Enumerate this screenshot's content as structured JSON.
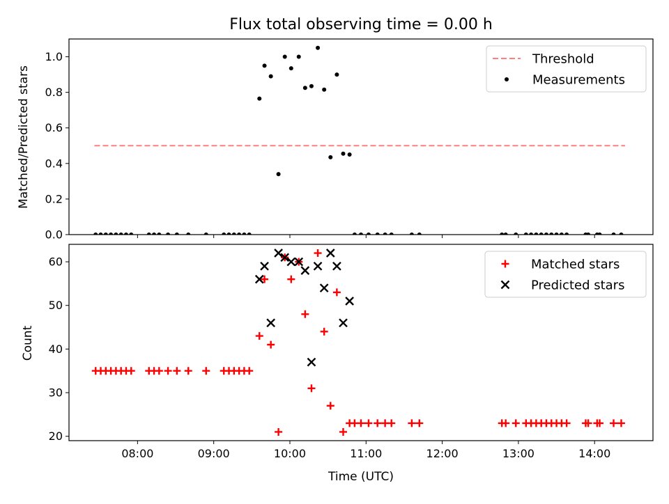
{
  "chart_data": [
    {
      "type": "scatter",
      "title": "Flux total observing time = 0.00 h",
      "xlabel": "",
      "ylabel": "Matched/Predicted stars",
      "xlim": [
        "07:06",
        "14:46"
      ],
      "ylim": [
        0,
        1.1
      ],
      "yticks": [
        0.0,
        0.2,
        0.4,
        0.6,
        0.8,
        1.0
      ],
      "xticks": [
        "08:00",
        "09:00",
        "10:00",
        "11:00",
        "12:00",
        "13:00",
        "14:00"
      ],
      "show_xtick_labels": false,
      "legend_position": "top-right",
      "grid": false,
      "series": [
        {
          "name": "Threshold",
          "kind": "dashed-line",
          "color": "#ff7f7f",
          "x": [
            "07:26",
            "14:24"
          ],
          "y": [
            0.5,
            0.5
          ]
        },
        {
          "name": "Measurements",
          "kind": "dots",
          "color": "#000000",
          "x": [
            "07:27",
            "07:31",
            "07:35",
            "07:39",
            "07:43",
            "07:47",
            "07:51",
            "07:55",
            "08:09",
            "08:13",
            "08:17",
            "08:24",
            "08:31",
            "08:40",
            "08:54",
            "09:08",
            "09:12",
            "09:16",
            "09:20",
            "09:24",
            "09:28",
            "09:36",
            "09:40",
            "09:45",
            "09:51",
            "09:56",
            "10:01",
            "10:07",
            "10:12",
            "10:17",
            "10:22",
            "10:27",
            "10:32",
            "10:37",
            "10:42",
            "10:47",
            "10:51",
            "10:56",
            "11:02",
            "11:09",
            "11:15",
            "11:20",
            "11:36",
            "11:42",
            "12:47",
            "12:50",
            "12:58",
            "13:06",
            "13:10",
            "13:14",
            "13:18",
            "13:22",
            "13:26",
            "13:30",
            "13:34",
            "13:38",
            "13:53",
            "13:55",
            "14:02",
            "14:04",
            "14:15",
            "14:21"
          ],
          "y": [
            0,
            0,
            0,
            0,
            0,
            0,
            0,
            0,
            0,
            0,
            0,
            0,
            0,
            0,
            0,
            0,
            0,
            0,
            0,
            0,
            0,
            0.765,
            0.95,
            0.89,
            0.34,
            1.0,
            0.935,
            1.0,
            0.825,
            0.835,
            1.05,
            0.815,
            0.435,
            0.9,
            0.455,
            0.45,
            0,
            0,
            0,
            0,
            0,
            0,
            0,
            0,
            0,
            0,
            0,
            0,
            0,
            0,
            0,
            0,
            0,
            0,
            0,
            0,
            0,
            0,
            0,
            0,
            0,
            0
          ]
        }
      ]
    },
    {
      "type": "scatter",
      "title": "",
      "xlabel": "Time (UTC)",
      "ylabel": "Count",
      "xlim": [
        "07:06",
        "14:46"
      ],
      "ylim": [
        19,
        64
      ],
      "yticks": [
        20,
        30,
        40,
        50,
        60
      ],
      "xticks": [
        "08:00",
        "09:00",
        "10:00",
        "11:00",
        "12:00",
        "13:00",
        "14:00"
      ],
      "legend_position": "top-right",
      "grid": false,
      "series": [
        {
          "name": "Matched stars",
          "marker": "plus",
          "color": "#ff0000",
          "x": [
            "07:27",
            "07:31",
            "07:35",
            "07:39",
            "07:43",
            "07:47",
            "07:51",
            "07:55",
            "08:09",
            "08:13",
            "08:17",
            "08:24",
            "08:31",
            "08:40",
            "08:54",
            "09:08",
            "09:12",
            "09:16",
            "09:20",
            "09:24",
            "09:28",
            "09:36",
            "09:40",
            "09:45",
            "09:51",
            "09:56",
            "10:01",
            "10:07",
            "10:12",
            "10:17",
            "10:22",
            "10:27",
            "10:32",
            "10:37",
            "10:42",
            "10:47",
            "10:51",
            "10:56",
            "11:02",
            "11:09",
            "11:15",
            "11:20",
            "11:36",
            "11:42",
            "12:47",
            "12:50",
            "12:58",
            "13:06",
            "13:10",
            "13:14",
            "13:18",
            "13:22",
            "13:26",
            "13:30",
            "13:34",
            "13:38",
            "13:53",
            "13:55",
            "14:02",
            "14:04",
            "14:15",
            "14:21"
          ],
          "y": [
            35,
            35,
            35,
            35,
            35,
            35,
            35,
            35,
            35,
            35,
            35,
            35,
            35,
            35,
            35,
            35,
            35,
            35,
            35,
            35,
            35,
            43,
            56,
            41,
            21,
            61,
            56,
            60,
            48,
            31,
            62,
            44,
            27,
            53,
            21,
            23,
            23,
            23,
            23,
            23,
            23,
            23,
            23,
            23,
            23,
            23,
            23,
            23,
            23,
            23,
            23,
            23,
            23,
            23,
            23,
            23,
            23,
            23,
            23,
            23,
            23,
            23
          ]
        },
        {
          "name": "Predicted stars",
          "marker": "x",
          "color": "#000000",
          "x": [
            "09:36",
            "09:40",
            "09:45",
            "09:51",
            "09:56",
            "10:01",
            "10:07",
            "10:12",
            "10:17",
            "10:22",
            "10:27",
            "10:32",
            "10:37",
            "10:42",
            "10:47"
          ],
          "y": [
            56,
            59,
            46,
            62,
            61,
            60,
            60,
            58,
            37,
            59,
            54,
            62,
            59,
            46,
            51
          ]
        }
      ]
    }
  ]
}
